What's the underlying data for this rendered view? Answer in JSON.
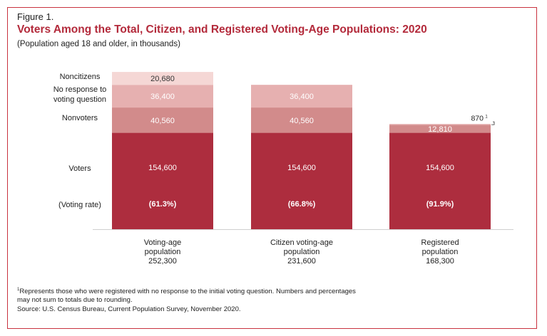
{
  "figure": {
    "label": "Figure 1.",
    "title": "Voters Among the Total, Citizen, and Registered Voting-Age Populations: 2020",
    "subtitle": "(Population aged 18 and older, in thousands)",
    "footnote_line1": "Represents those who were registered with no response to the initial voting question. Numbers and percentages",
    "footnote_line2": "may not sum to totals due to rounding.",
    "source": "Source: U.S. Census Bureau, Current Population Survey, November 2020.",
    "footnote_marker": "1"
  },
  "chart_data": {
    "type": "bar",
    "stacked": true,
    "unit": "thousands",
    "categories": [
      {
        "name_lines": [
          "Voting-age",
          "population"
        ],
        "total": "252,300"
      },
      {
        "name_lines": [
          "Citizen voting-age",
          "population"
        ],
        "total": "231,600"
      },
      {
        "name_lines": [
          "Registered",
          "population"
        ],
        "total": "168,300"
      }
    ],
    "segment_labels": [
      {
        "lines": [
          "Noncitizens"
        ],
        "segment": "noncitizens"
      },
      {
        "lines": [
          "No response to",
          "voting question"
        ],
        "segment": "no_response"
      },
      {
        "lines": [
          "Nonvoters"
        ],
        "segment": "nonvoters"
      },
      {
        "lines": [
          "Voters"
        ],
        "segment": "voters"
      },
      {
        "lines": [
          "(Voting rate)"
        ],
        "segment": "voting_rate"
      }
    ],
    "series": [
      {
        "key": "voters",
        "color": "#ad2d3e",
        "values": [
          154600,
          154600,
          154600
        ],
        "labels": [
          "154,600",
          "154,600",
          "154,600"
        ]
      },
      {
        "key": "nonvoters",
        "color": "#d28b8b",
        "values": [
          40560,
          40560,
          12810
        ],
        "labels": [
          "40,560",
          "40,560",
          "12,810"
        ]
      },
      {
        "key": "no_response",
        "color": "#e6b0b0",
        "values": [
          36400,
          36400,
          870
        ],
        "labels": [
          "36,400",
          "36,400",
          "870"
        ]
      },
      {
        "key": "noncitizens",
        "color": "#f5d7d5",
        "values": [
          20680,
          0,
          0
        ],
        "labels": [
          "20,680",
          "",
          ""
        ]
      }
    ],
    "voting_rate": [
      "(61.3%)",
      "(66.8%)",
      "(91.9%)"
    ],
    "ylim": [
      0,
      252300
    ]
  }
}
